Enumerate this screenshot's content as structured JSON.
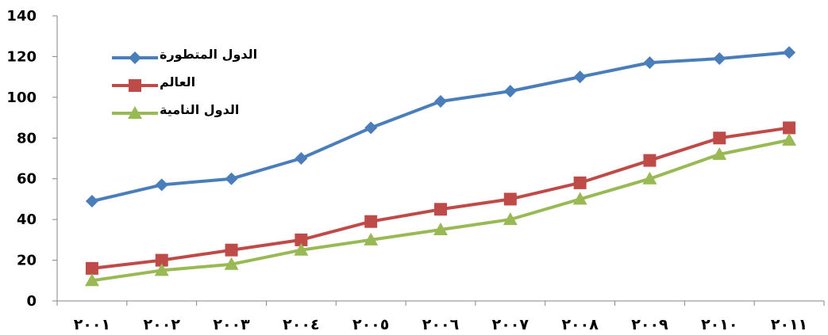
{
  "chart_data": {
    "type": "line",
    "categories": [
      "٢٠٠١",
      "٢٠٠٢",
      "٢٠٠٣",
      "٢٠٠٤",
      "٢٠٠٥",
      "٢٠٠٦",
      "٢٠٠٧",
      "٢٠٠٨",
      "٢٠٠٩",
      "٢٠١٠",
      "٢٠١١"
    ],
    "ylim": [
      0,
      140
    ],
    "yticks": [
      "0",
      "20",
      "40",
      "60",
      "80",
      "100",
      "120",
      "140"
    ],
    "grid": false,
    "legend_position": "top-left",
    "series": [
      {
        "name": "الدول المتطورة",
        "color": "#4a7ebb",
        "marker": "diamond",
        "values": [
          49,
          57,
          60,
          70,
          85,
          98,
          103,
          110,
          117,
          119,
          122
        ]
      },
      {
        "name": "العالم",
        "color": "#be4b48",
        "marker": "square",
        "values": [
          16,
          20,
          25,
          30,
          39,
          45,
          50,
          58,
          69,
          80,
          85
        ]
      },
      {
        "name": "الدول النامية",
        "color": "#98b954",
        "marker": "triangle",
        "values": [
          10,
          15,
          18,
          25,
          30,
          35,
          40,
          50,
          60,
          72,
          79
        ]
      }
    ]
  }
}
